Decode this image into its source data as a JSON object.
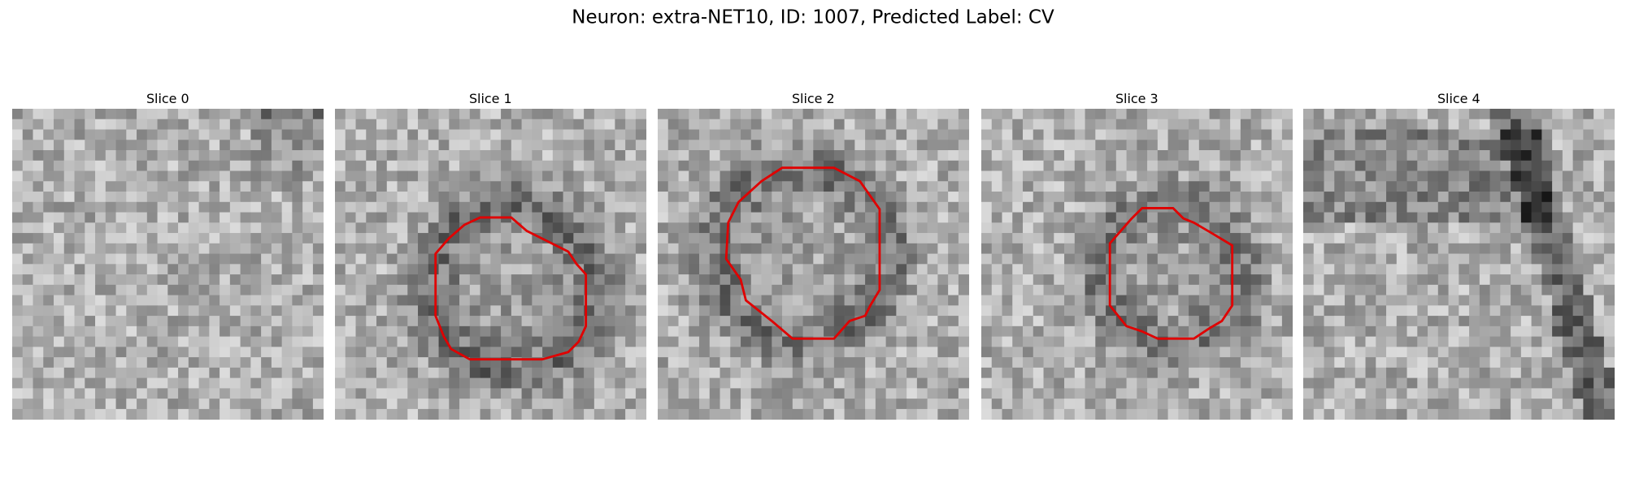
{
  "title": "Neuron: extra-NET10, ID: 1007, Predicted Label: CV",
  "panels": [
    {
      "title": "Slice 0"
    },
    {
      "title": "Slice 1"
    },
    {
      "title": "Slice 2"
    },
    {
      "title": "Slice 3"
    },
    {
      "title": "Slice 4"
    }
  ]
}
